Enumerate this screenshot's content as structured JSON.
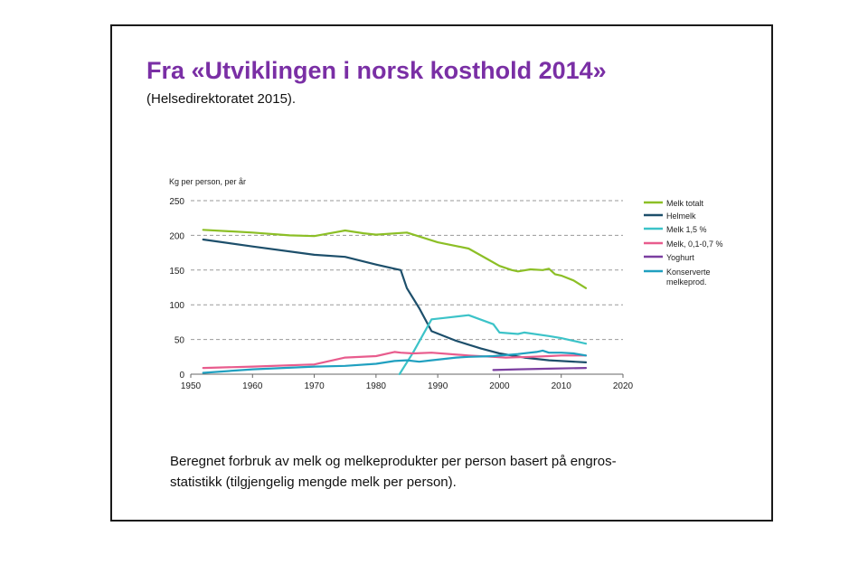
{
  "slide": {
    "title": "Fra «Utviklingen i norsk kosthold 2014»",
    "subtitle": "(Helsedirektoratet 2015).",
    "caption_line1": "Beregnet forbruk  av melk og melkeprodukter per person basert på engros-",
    "caption_line2": "statistikk (tilgjengelig mengde melk per person)."
  },
  "chart_data": {
    "type": "line",
    "ylabel": "Kg per person, per år",
    "xlim": [
      1950,
      2020
    ],
    "ylim": [
      0,
      250
    ],
    "x_ticks": [
      1950,
      1960,
      1970,
      1980,
      1990,
      2000,
      2010,
      2020
    ],
    "y_ticks": [
      0,
      50,
      100,
      150,
      200,
      250
    ],
    "grid": "horizontal dashed",
    "legend_position": "right",
    "series": [
      {
        "name": "Melk totalt",
        "color": "#8cbf26",
        "points": [
          [
            1952,
            208
          ],
          [
            1960,
            204
          ],
          [
            1966,
            200
          ],
          [
            1970,
            199
          ],
          [
            1975,
            207
          ],
          [
            1978,
            203
          ],
          [
            1980,
            201
          ],
          [
            1985,
            204
          ],
          [
            1990,
            190
          ],
          [
            1995,
            181
          ],
          [
            1998,
            166
          ],
          [
            2000,
            156
          ],
          [
            2002,
            150
          ],
          [
            2003,
            148
          ],
          [
            2005,
            151
          ],
          [
            2007,
            150
          ],
          [
            2008,
            152
          ],
          [
            2009,
            144
          ],
          [
            2010,
            142
          ],
          [
            2012,
            135
          ],
          [
            2014,
            124
          ]
        ]
      },
      {
        "name": "Helmelk",
        "color": "#1d4f6b",
        "points": [
          [
            1952,
            194
          ],
          [
            1960,
            184
          ],
          [
            1970,
            172
          ],
          [
            1975,
            169
          ],
          [
            1980,
            158
          ],
          [
            1983,
            152
          ],
          [
            1984,
            150
          ],
          [
            1985,
            124
          ],
          [
            1987,
            95
          ],
          [
            1989,
            62
          ],
          [
            1993,
            48
          ],
          [
            1997,
            37
          ],
          [
            2000,
            30
          ],
          [
            2004,
            24
          ],
          [
            2008,
            20
          ],
          [
            2014,
            17
          ]
        ]
      },
      {
        "name": "Melk 1,5 %",
        "color": "#3cc3c8",
        "points": [
          [
            1983.8,
            0
          ],
          [
            1986,
            31
          ],
          [
            1989,
            79
          ],
          [
            1991,
            81
          ],
          [
            1995,
            85
          ],
          [
            1999,
            72
          ],
          [
            2000,
            60
          ],
          [
            2003,
            58
          ],
          [
            2004,
            60
          ],
          [
            2008,
            55
          ],
          [
            2010,
            52
          ],
          [
            2014,
            44
          ]
        ]
      },
      {
        "name": "Melk, 0,1-0,7 %",
        "color": "#e85c8d",
        "points": [
          [
            1952,
            9
          ],
          [
            1960,
            11
          ],
          [
            1970,
            14
          ],
          [
            1975,
            24
          ],
          [
            1980,
            26
          ],
          [
            1983,
            32
          ],
          [
            1984,
            31
          ],
          [
            1986,
            30
          ],
          [
            1989,
            31
          ],
          [
            1995,
            27
          ],
          [
            1999,
            25
          ],
          [
            2001,
            24
          ],
          [
            2005,
            25
          ],
          [
            2008,
            26
          ],
          [
            2010,
            27
          ],
          [
            2014,
            27
          ]
        ]
      },
      {
        "name": "Yoghurt",
        "color": "#7b3fa0",
        "points": [
          [
            1999,
            6
          ],
          [
            2003,
            7
          ],
          [
            2008,
            8
          ],
          [
            2014,
            9
          ]
        ]
      },
      {
        "name": "Konserverte melkeprod.",
        "color": "#20a0c0",
        "points": [
          [
            1952,
            2
          ],
          [
            1960,
            7
          ],
          [
            1970,
            11
          ],
          [
            1975,
            12
          ],
          [
            1980,
            15
          ],
          [
            1983,
            19
          ],
          [
            1985,
            20
          ],
          [
            1987,
            18
          ],
          [
            1989,
            20
          ],
          [
            1993,
            24
          ],
          [
            1995,
            25
          ],
          [
            1999,
            26
          ],
          [
            2003,
            29
          ],
          [
            2006,
            32
          ],
          [
            2007,
            34
          ],
          [
            2008,
            31
          ],
          [
            2010,
            31
          ],
          [
            2012,
            30
          ],
          [
            2014,
            27
          ]
        ]
      }
    ],
    "legend_labels": [
      {
        "series": 0,
        "lines": [
          "Melk totalt"
        ]
      },
      {
        "series": 1,
        "lines": [
          "Helmelk"
        ]
      },
      {
        "series": 2,
        "lines": [
          "Melk 1,5 %"
        ]
      },
      {
        "series": 3,
        "lines": [
          "Melk, 0,1-0,7 %"
        ]
      },
      {
        "series": 4,
        "lines": [
          "Yoghurt"
        ]
      },
      {
        "series": 5,
        "lines": [
          "Konserverte",
          "melkeprod."
        ]
      }
    ]
  }
}
